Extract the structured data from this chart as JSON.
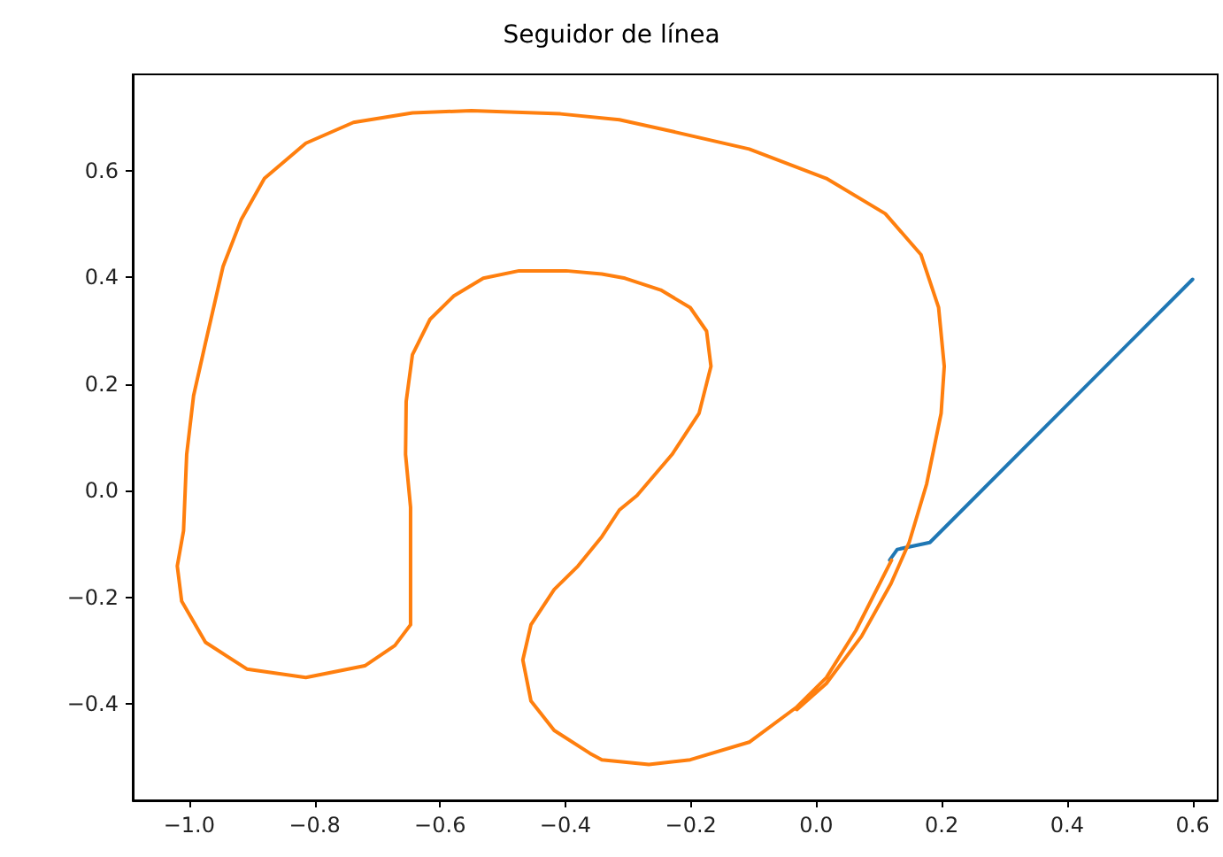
{
  "chart_data": {
    "type": "line",
    "title": "Seguidor de línea",
    "marker": "none",
    "line_style": "solid",
    "grid": false,
    "xlim": [
      -1.09,
      0.64
    ],
    "ylim": [
      -0.58,
      0.78
    ],
    "xticks": [
      {
        "value": -1.0,
        "label": "−1.0"
      },
      {
        "value": -0.8,
        "label": "−0.8"
      },
      {
        "value": -0.6,
        "label": "−0.6"
      },
      {
        "value": -0.4,
        "label": "−0.4"
      },
      {
        "value": -0.2,
        "label": "−0.2"
      },
      {
        "value": 0,
        "label": "0.0"
      },
      {
        "value": 0.2,
        "label": "0.2"
      },
      {
        "value": 0.4,
        "label": "0.4"
      },
      {
        "value": 0.6,
        "label": "0.6"
      }
    ],
    "yticks": [
      {
        "value": -0.4,
        "label": "−0.4"
      },
      {
        "value": -0.2,
        "label": "−0.2"
      },
      {
        "value": 0,
        "label": "0.0"
      },
      {
        "value": 0.2,
        "label": "0.2"
      },
      {
        "value": 0.4,
        "label": "0.4"
      },
      {
        "value": 0.6,
        "label": "0.6"
      }
    ],
    "series": [
      {
        "color": "#1f77b4",
        "x": [
          0.6,
          0.181,
          0.129,
          0.117
        ],
        "values": [
          0.396,
          -0.097,
          -0.11,
          -0.13
        ]
      },
      {
        "color": "#ff7f0e",
        "x": [
          0.12,
          0.063,
          0.016,
          -0.031,
          -0.107,
          -0.201,
          -0.267,
          -0.342,
          -0.361,
          -0.418,
          -0.455,
          -0.468,
          -0.455,
          -0.418,
          -0.38,
          -0.342,
          -0.314,
          -0.286,
          -0.23,
          -0.187,
          -0.168,
          -0.175,
          -0.201,
          -0.248,
          -0.305,
          -0.342,
          -0.399,
          -0.474,
          -0.531,
          -0.578,
          -0.616,
          -0.644,
          -0.654,
          -0.655,
          -0.647,
          -0.647,
          -0.672,
          -0.72,
          -0.814,
          -0.908,
          -0.974,
          -1.012,
          -1.019,
          -1.009,
          -1.004,
          -0.993,
          -0.974,
          -0.946,
          -0.917,
          -0.88,
          -0.814,
          -0.738,
          -0.644,
          -0.55,
          -0.408,
          -0.314,
          -0.229,
          -0.107,
          0.016,
          0.11,
          0.167,
          0.195,
          0.204,
          0.199,
          0.176,
          0.148,
          0.119,
          0.072,
          0.016,
          -0.031
        ],
        "values": [
          -0.13,
          -0.262,
          -0.35,
          -0.405,
          -0.471,
          -0.504,
          -0.513,
          -0.504,
          -0.492,
          -0.449,
          -0.394,
          -0.317,
          -0.251,
          -0.185,
          -0.141,
          -0.086,
          -0.036,
          -0.009,
          0.068,
          0.145,
          0.233,
          0.299,
          0.343,
          0.376,
          0.398,
          0.406,
          0.412,
          0.412,
          0.398,
          0.365,
          0.321,
          0.255,
          0.167,
          0.068,
          -0.031,
          -0.251,
          -0.29,
          -0.328,
          -0.35,
          -0.334,
          -0.284,
          -0.207,
          -0.141,
          -0.075,
          0.068,
          0.178,
          0.277,
          0.42,
          0.508,
          0.585,
          0.651,
          0.69,
          0.708,
          0.712,
          0.706,
          0.695,
          0.673,
          0.64,
          0.585,
          0.519,
          0.442,
          0.343,
          0.233,
          0.145,
          0.013,
          -0.097,
          -0.174,
          -0.273,
          -0.361,
          -0.41
        ]
      }
    ]
  }
}
